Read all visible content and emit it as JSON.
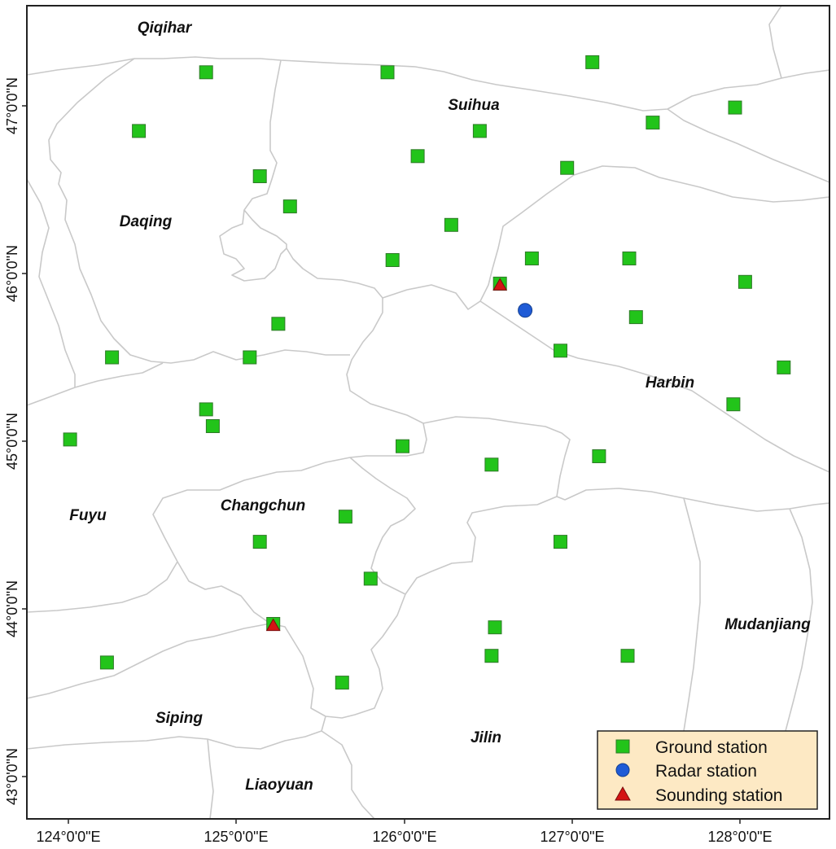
{
  "colors": {
    "ground": "#22c41a",
    "ground_stroke": "#2f7a28",
    "radar": "#1f5bd6",
    "sounding": "#d41414",
    "boundary": "#c9c9c9",
    "legend_bg": "#fde9c4"
  },
  "cities": [
    "Qiqihar",
    "Suihua",
    "Daqing",
    "Harbin",
    "Fuyu",
    "Changchun",
    "Mudanjiang",
    "Siping",
    "Jilin",
    "Liaoyuan"
  ],
  "x_ticks": [
    "124°0'0\"E",
    "125°0'0\"E",
    "126°0'0\"E",
    "127°0'0\"E",
    "128°0'0\"E"
  ],
  "y_ticks": [
    "47°0'0\"N",
    "46°0'0\"N",
    "45°0'0\"N",
    "44°0'0\"N",
    "43°0'0\"N"
  ],
  "legend": {
    "ground": "Ground station",
    "radar": "Radar station",
    "sounding": "Sounding station"
  },
  "stations": {
    "ground": [
      {
        "lon": 124.82,
        "lat": 47.2
      },
      {
        "lon": 125.9,
        "lat": 47.2
      },
      {
        "lon": 127.12,
        "lat": 47.26
      },
      {
        "lon": 127.97,
        "lat": 46.99
      },
      {
        "lon": 124.42,
        "lat": 46.85
      },
      {
        "lon": 126.45,
        "lat": 46.85
      },
      {
        "lon": 127.48,
        "lat": 46.9
      },
      {
        "lon": 126.08,
        "lat": 46.7
      },
      {
        "lon": 126.97,
        "lat": 46.63
      },
      {
        "lon": 125.14,
        "lat": 46.58
      },
      {
        "lon": 125.32,
        "lat": 46.4
      },
      {
        "lon": 126.28,
        "lat": 46.29
      },
      {
        "lon": 125.93,
        "lat": 46.08
      },
      {
        "lon": 126.76,
        "lat": 46.09
      },
      {
        "lon": 127.34,
        "lat": 46.09
      },
      {
        "lon": 128.03,
        "lat": 45.95
      },
      {
        "lon": 125.25,
        "lat": 45.7
      },
      {
        "lon": 127.38,
        "lat": 45.74
      },
      {
        "lon": 124.26,
        "lat": 45.5
      },
      {
        "lon": 125.08,
        "lat": 45.5
      },
      {
        "lon": 126.93,
        "lat": 45.54
      },
      {
        "lon": 128.26,
        "lat": 45.44
      },
      {
        "lon": 127.96,
        "lat": 45.22
      },
      {
        "lon": 124.82,
        "lat": 45.19
      },
      {
        "lon": 124.86,
        "lat": 45.09
      },
      {
        "lon": 124.01,
        "lat": 45.01
      },
      {
        "lon": 125.99,
        "lat": 44.97
      },
      {
        "lon": 126.52,
        "lat": 44.86
      },
      {
        "lon": 127.16,
        "lat": 44.91
      },
      {
        "lon": 125.65,
        "lat": 44.55
      },
      {
        "lon": 125.14,
        "lat": 44.4
      },
      {
        "lon": 126.93,
        "lat": 44.4
      },
      {
        "lon": 125.8,
        "lat": 44.18
      },
      {
        "lon": 126.54,
        "lat": 43.89
      },
      {
        "lon": 124.23,
        "lat": 43.68
      },
      {
        "lon": 126.52,
        "lat": 43.72
      },
      {
        "lon": 127.33,
        "lat": 43.72
      },
      {
        "lon": 125.63,
        "lat": 43.56
      },
      {
        "lon": 126.57,
        "lat": 45.94
      },
      {
        "lon": 125.22,
        "lat": 43.91
      }
    ],
    "radar": [
      {
        "lon": 126.72,
        "lat": 45.78
      }
    ],
    "sounding": [
      {
        "lon": 126.57,
        "lat": 45.93
      },
      {
        "lon": 125.22,
        "lat": 43.9
      }
    ]
  }
}
